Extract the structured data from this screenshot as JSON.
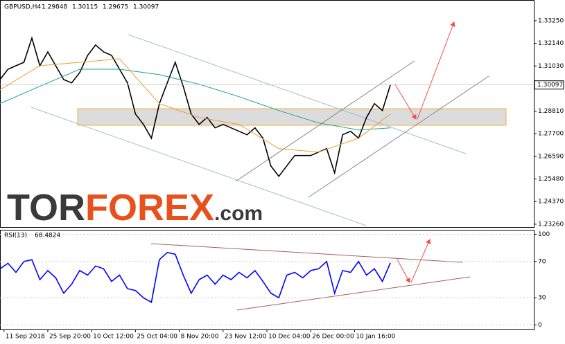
{
  "chart_data": [
    {
      "type": "line",
      "title": "GBPUSD,H4",
      "header_values": [
        1.29848,
        1.30115,
        1.29675,
        1.30097
      ],
      "last_price": 1.30097,
      "x": [
        0,
        2,
        4,
        6,
        8,
        10,
        12,
        14,
        16,
        18,
        20,
        22,
        24,
        26,
        28,
        30,
        32,
        34,
        36,
        38,
        40,
        42,
        44,
        46,
        48,
        50,
        52,
        54,
        56,
        58,
        60,
        62,
        64,
        66,
        68,
        70,
        72,
        74,
        76,
        78,
        80,
        82,
        84,
        86,
        88,
        90,
        92,
        94,
        96,
        98
      ],
      "series": [
        {
          "color": "#000000",
          "values": [
            1.3036,
            1.3087,
            1.3104,
            1.3121,
            1.324,
            1.3104,
            1.3172,
            1.3104,
            1.3036,
            1.302,
            1.307,
            1.3155,
            1.3206,
            1.3172,
            1.3155,
            1.3087,
            1.302,
            1.2867,
            1.2816,
            1.2748,
            1.2918,
            1.302,
            1.3121,
            1.3003,
            1.2867,
            1.2816,
            1.285,
            1.2799,
            1.2816,
            1.2799,
            1.2782,
            1.2765,
            1.2799,
            1.2748,
            1.2612,
            1.2561,
            1.2612,
            1.2663,
            1.2663,
            1.2663,
            1.268,
            1.2697,
            1.2578,
            1.2765,
            1.2782,
            1.2748,
            1.285,
            1.2918,
            1.2884,
            1.30097
          ]
        },
        {
          "color": "#20a090",
          "x": [
            0,
            10,
            20,
            30,
            40,
            50,
            60,
            70,
            80,
            90,
            98
          ],
          "values": [
            1.2918,
            1.3003,
            1.3087,
            1.3087,
            1.306,
            1.3013,
            1.2952,
            1.2884,
            1.2823,
            1.2789,
            1.2799
          ]
        },
        {
          "color": "#e8a030",
          "x": [
            0,
            10,
            20,
            30,
            40,
            50,
            60,
            70,
            80,
            90,
            98
          ],
          "values": [
            1.2986,
            1.3104,
            1.3121,
            1.3138,
            1.2918,
            1.285,
            1.2816,
            1.2697,
            1.268,
            1.2748,
            1.2867
          ]
        }
      ],
      "xlim": [
        0,
        134
      ],
      "xticks": [
        {
          "value": 1,
          "label": "11 Sep 2018"
        },
        {
          "value": 12,
          "label": "25 Sep 20:00"
        },
        {
          "value": 23,
          "label": "10 Oct 12:00"
        },
        {
          "value": 34,
          "label": "25 Oct 04:00"
        },
        {
          "value": 45,
          "label": "8 Nov 20:00"
        },
        {
          "value": 56,
          "label": "23 Nov 12:00"
        },
        {
          "value": 67,
          "label": "10 Dec 04:00"
        },
        {
          "value": 78,
          "label": "26 Dec 00:00"
        },
        {
          "value": 89,
          "label": "10 Jan 16:00"
        }
      ],
      "ylim": [
        1.2312,
        1.342
      ],
      "yticks": [
        {
          "value": 1.3325,
          "label": "1.33250"
        },
        {
          "value": 1.3214,
          "label": "1.32140"
        },
        {
          "value": 1.3103,
          "label": "1.31030"
        },
        {
          "value": 1.2881,
          "label": "1.28810"
        },
        {
          "value": 1.277,
          "label": "1.27700"
        },
        {
          "value": 1.2659,
          "label": "1.26590"
        },
        {
          "value": 1.2548,
          "label": "1.25480"
        },
        {
          "value": 1.2437,
          "label": "1.24370"
        },
        {
          "value": 1.2326,
          "label": "1.23260"
        }
      ],
      "watermark": [
        "TOR",
        "FOREX",
        ".com"
      ]
    },
    {
      "type": "line",
      "title": "RSI(13)",
      "current": 68.4824,
      "x": [
        0,
        2,
        4,
        6,
        8,
        10,
        12,
        14,
        16,
        18,
        20,
        22,
        24,
        26,
        28,
        30,
        32,
        34,
        36,
        38,
        40,
        42,
        44,
        46,
        48,
        50,
        52,
        54,
        56,
        58,
        60,
        62,
        64,
        66,
        68,
        70,
        72,
        74,
        76,
        78,
        80,
        82,
        84,
        86,
        88,
        90,
        92,
        94,
        96,
        98
      ],
      "series": [
        {
          "color": "#0000ff",
          "values": [
            62,
            68,
            58,
            70,
            72,
            50,
            60,
            52,
            35,
            45,
            60,
            55,
            65,
            62,
            48,
            55,
            40,
            38,
            30,
            25,
            72,
            80,
            78,
            55,
            35,
            50,
            55,
            45,
            55,
            50,
            58,
            52,
            60,
            48,
            35,
            30,
            55,
            58,
            52,
            60,
            62,
            70,
            35,
            60,
            58,
            70,
            55,
            62,
            48,
            68.4824
          ]
        }
      ],
      "xlim": [
        0,
        134
      ],
      "ylim": [
        -5,
        105
      ],
      "yticks": [
        100,
        70,
        30,
        0
      ]
    }
  ]
}
